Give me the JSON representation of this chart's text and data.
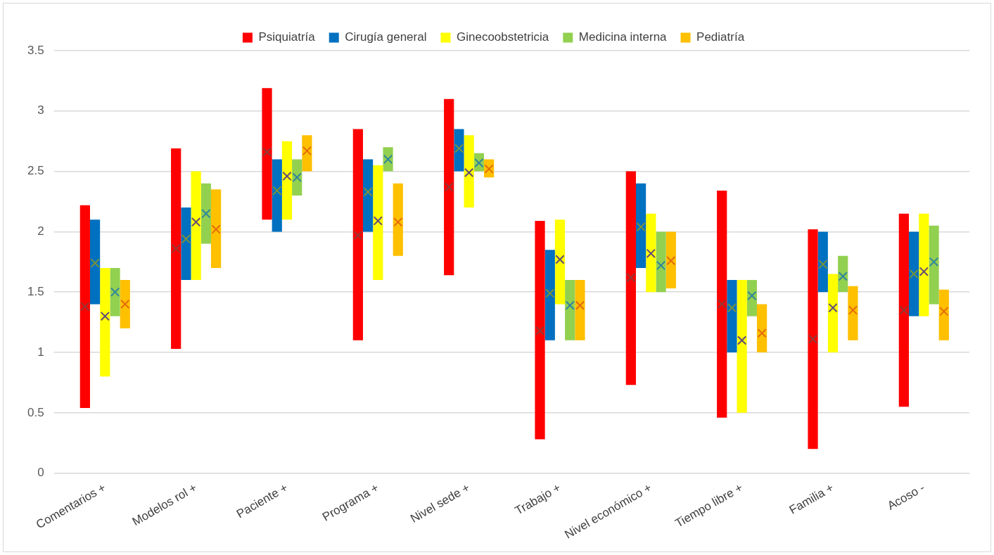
{
  "chart_data": {
    "type": "bar",
    "categories": [
      "Comentarios +",
      "Modelos rol +",
      "Paciente +",
      "Programa +",
      "Nivel sede +",
      "Trabajo +",
      "Nivel económico +",
      "Tiempo libre +",
      "Familia +",
      "Acoso -"
    ],
    "ylim": [
      0,
      3.5
    ],
    "yticks": [
      0,
      0.5,
      1,
      1.5,
      2,
      2.5,
      3,
      3.5
    ],
    "grid": "y",
    "legend": "top",
    "marker": "cross",
    "series": [
      {
        "name": "Psiquiatría",
        "color": "#ff0000",
        "base": [
          0.54,
          1.03,
          2.1,
          1.1,
          1.64,
          0.28,
          0.73,
          0.46,
          0.2,
          0.55
        ],
        "values": [
          1.68,
          1.66,
          1.09,
          1.75,
          1.46,
          1.81,
          1.77,
          1.88,
          1.82,
          1.6
        ]
      },
      {
        "name": "Cirugía general",
        "color": "#0070c0",
        "base": [
          1.4,
          1.6,
          2.0,
          2.0,
          2.5,
          1.1,
          1.7,
          1.0,
          1.5,
          1.3
        ],
        "values": [
          0.7,
          0.6,
          0.6,
          0.6,
          0.35,
          0.75,
          0.7,
          0.6,
          0.5,
          0.7
        ]
      },
      {
        "name": "Ginecoobstetricia",
        "color": "#ffff00",
        "base": [
          0.8,
          1.6,
          2.1,
          1.6,
          2.2,
          1.4,
          1.5,
          0.5,
          1.0,
          1.3
        ],
        "values": [
          0.9,
          0.9,
          0.65,
          0.95,
          0.6,
          0.7,
          0.65,
          1.1,
          0.65,
          0.85
        ]
      },
      {
        "name": "Medicina interna",
        "color": "#92d050",
        "base": [
          1.3,
          1.9,
          2.3,
          2.5,
          2.5,
          1.1,
          1.5,
          1.3,
          1.5,
          1.4
        ],
        "values": [
          0.4,
          0.5,
          0.3,
          0.2,
          0.15,
          0.5,
          0.5,
          0.3,
          0.3,
          0.65
        ]
      },
      {
        "name": "Pediatría",
        "color": "#ffc000",
        "base": [
          1.2,
          1.7,
          2.5,
          1.8,
          2.45,
          1.1,
          1.53,
          1.0,
          1.1,
          1.1
        ],
        "values": [
          0.4,
          0.65,
          0.3,
          0.6,
          0.15,
          0.5,
          0.47,
          0.4,
          0.45,
          0.42
        ]
      },
      {
        "type": "scatter",
        "color": "#953735",
        "x": [
          "Comentarios +",
          "Modelos rol +",
          "Paciente +",
          "Programa +",
          "Nivel sede +",
          "Trabajo +",
          "Nivel económico +",
          "Tiempo libre +",
          "Familia +",
          "Acoso -"
        ],
        "values": [
          1.38,
          1.86,
          2.66,
          1.97,
          2.37,
          1.18,
          1.62,
          1.4,
          1.11,
          1.35
        ]
      },
      {
        "type": "scatter",
        "color": "#77933c",
        "x": [
          "Comentarios +",
          "Modelos rol +",
          "Paciente +",
          "Programa +",
          "Nivel sede +",
          "Trabajo +",
          "Nivel económico +",
          "Tiempo libre +",
          "Familia +",
          "Acoso -"
        ],
        "values": [
          1.74,
          1.94,
          2.34,
          2.33,
          2.69,
          1.49,
          2.04,
          1.37,
          1.73,
          1.65
        ]
      },
      {
        "type": "scatter",
        "color": "#604a7b",
        "x": [
          "Comentarios +",
          "Modelos rol +",
          "Paciente +",
          "Programa +",
          "Nivel sede +",
          "Trabajo +",
          "Nivel económico +",
          "Tiempo libre +",
          "Familia +",
          "Acoso -"
        ],
        "values": [
          1.3,
          2.08,
          2.46,
          2.09,
          2.49,
          1.77,
          1.82,
          1.1,
          1.37,
          1.67
        ]
      },
      {
        "type": "scatter",
        "color": "#31859c",
        "x": [
          "Comentarios +",
          "Modelos rol +",
          "Paciente +",
          "Programa +",
          "Nivel sede +",
          "Trabajo +",
          "Nivel económico +",
          "Tiempo libre +",
          "Familia +",
          "Acoso -"
        ],
        "values": [
          1.5,
          2.15,
          2.45,
          2.6,
          2.57,
          1.39,
          1.72,
          1.47,
          1.63,
          1.75
        ]
      },
      {
        "type": "scatter",
        "color": "#e46c0a",
        "x": [
          "Comentarios +",
          "Modelos rol +",
          "Paciente +",
          "Programa +",
          "Nivel sede +",
          "Trabajo +",
          "Nivel económico +",
          "Tiempo libre +",
          "Familia +",
          "Acoso -"
        ],
        "values": [
          1.4,
          2.02,
          2.67,
          2.08,
          2.52,
          1.39,
          1.76,
          1.16,
          1.35,
          1.34
        ]
      }
    ]
  }
}
